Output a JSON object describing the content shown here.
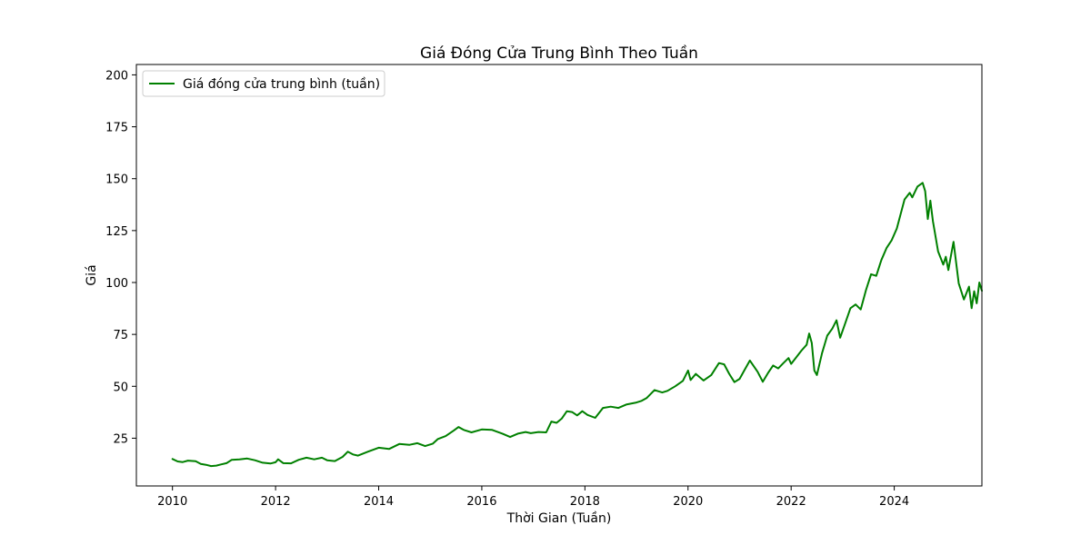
{
  "chart_data": {
    "type": "line",
    "title": "Giá Đóng Cửa Trung Bình Theo Tuần",
    "xlabel": "Thời Gian (Tuần)",
    "ylabel": "Giá",
    "xlim": [
      2009.3,
      2025.7
    ],
    "ylim": [
      2,
      205
    ],
    "xticks": [
      2010,
      2012,
      2014,
      2016,
      2018,
      2020,
      2022,
      2024
    ],
    "yticks": [
      25,
      50,
      75,
      100,
      125,
      150,
      175,
      200
    ],
    "grid": false,
    "legend": "top-left",
    "color": "#008000",
    "series": [
      {
        "name": "Giá đóng cửa trung bình (tuần)",
        "points": [
          [
            2010.0,
            15.0
          ],
          [
            2010.1,
            13.8
          ],
          [
            2010.2,
            13.5
          ],
          [
            2010.3,
            14.2
          ],
          [
            2010.45,
            13.9
          ],
          [
            2010.55,
            12.6
          ],
          [
            2010.65,
            12.2
          ],
          [
            2010.75,
            11.6
          ],
          [
            2010.85,
            11.8
          ],
          [
            2010.95,
            12.4
          ],
          [
            2011.05,
            13.0
          ],
          [
            2011.15,
            14.6
          ],
          [
            2011.3,
            14.8
          ],
          [
            2011.45,
            15.2
          ],
          [
            2011.6,
            14.4
          ],
          [
            2011.75,
            13.2
          ],
          [
            2011.9,
            12.8
          ],
          [
            2012.0,
            13.4
          ],
          [
            2012.05,
            14.8
          ],
          [
            2012.15,
            13.0
          ],
          [
            2012.3,
            12.9
          ],
          [
            2012.45,
            14.6
          ],
          [
            2012.6,
            15.6
          ],
          [
            2012.75,
            14.8
          ],
          [
            2012.9,
            15.6
          ],
          [
            2013.0,
            14.4
          ],
          [
            2013.15,
            14.0
          ],
          [
            2013.3,
            16.0
          ],
          [
            2013.4,
            18.5
          ],
          [
            2013.5,
            17.2
          ],
          [
            2013.6,
            16.6
          ],
          [
            2013.8,
            18.6
          ],
          [
            2014.0,
            20.4
          ],
          [
            2014.2,
            19.8
          ],
          [
            2014.4,
            22.2
          ],
          [
            2014.6,
            21.8
          ],
          [
            2014.75,
            22.6
          ],
          [
            2014.9,
            21.2
          ],
          [
            2015.05,
            22.4
          ],
          [
            2015.15,
            24.6
          ],
          [
            2015.3,
            26.0
          ],
          [
            2015.45,
            28.6
          ],
          [
            2015.55,
            30.4
          ],
          [
            2015.65,
            29.0
          ],
          [
            2015.8,
            27.8
          ],
          [
            2016.0,
            29.2
          ],
          [
            2016.2,
            29.0
          ],
          [
            2016.4,
            27.2
          ],
          [
            2016.55,
            25.6
          ],
          [
            2016.7,
            27.2
          ],
          [
            2016.85,
            28.0
          ],
          [
            2016.95,
            27.4
          ],
          [
            2017.1,
            28.0
          ],
          [
            2017.25,
            27.8
          ],
          [
            2017.35,
            33.0
          ],
          [
            2017.45,
            32.4
          ],
          [
            2017.55,
            34.4
          ],
          [
            2017.65,
            38.0
          ],
          [
            2017.75,
            37.6
          ],
          [
            2017.85,
            36.0
          ],
          [
            2017.95,
            38.0
          ],
          [
            2018.05,
            36.2
          ],
          [
            2018.2,
            34.8
          ],
          [
            2018.35,
            39.6
          ],
          [
            2018.5,
            40.2
          ],
          [
            2018.65,
            39.6
          ],
          [
            2018.8,
            41.2
          ],
          [
            2019.0,
            42.2
          ],
          [
            2019.1,
            43.0
          ],
          [
            2019.2,
            44.4
          ],
          [
            2019.35,
            48.2
          ],
          [
            2019.5,
            47.0
          ],
          [
            2019.6,
            47.8
          ],
          [
            2019.75,
            50.0
          ],
          [
            2019.9,
            52.6
          ],
          [
            2020.0,
            57.6
          ],
          [
            2020.05,
            53.0
          ],
          [
            2020.15,
            56.0
          ],
          [
            2020.3,
            52.8
          ],
          [
            2020.45,
            55.4
          ],
          [
            2020.6,
            61.2
          ],
          [
            2020.7,
            60.6
          ],
          [
            2020.8,
            56.0
          ],
          [
            2020.9,
            52.0
          ],
          [
            2021.0,
            53.6
          ],
          [
            2021.1,
            58.0
          ],
          [
            2021.2,
            62.4
          ],
          [
            2021.35,
            57.0
          ],
          [
            2021.45,
            52.2
          ],
          [
            2021.55,
            56.4
          ],
          [
            2021.65,
            60.0
          ],
          [
            2021.75,
            58.6
          ],
          [
            2021.85,
            61.2
          ],
          [
            2021.95,
            63.6
          ],
          [
            2022.0,
            60.8
          ],
          [
            2022.1,
            64.0
          ],
          [
            2022.2,
            67.2
          ],
          [
            2022.3,
            70.0
          ],
          [
            2022.35,
            75.4
          ],
          [
            2022.4,
            70.8
          ],
          [
            2022.45,
            57.6
          ],
          [
            2022.5,
            55.4
          ],
          [
            2022.6,
            66.0
          ],
          [
            2022.7,
            74.4
          ],
          [
            2022.8,
            77.8
          ],
          [
            2022.88,
            81.8
          ],
          [
            2022.95,
            73.4
          ],
          [
            2023.05,
            80.4
          ],
          [
            2023.15,
            87.6
          ],
          [
            2023.25,
            89.4
          ],
          [
            2023.35,
            87.0
          ],
          [
            2023.45,
            96.2
          ],
          [
            2023.55,
            104.0
          ],
          [
            2023.65,
            103.2
          ],
          [
            2023.75,
            110.8
          ],
          [
            2023.85,
            116.6
          ],
          [
            2023.95,
            120.4
          ],
          [
            2024.05,
            126.0
          ],
          [
            2024.15,
            135.4
          ],
          [
            2024.2,
            140.0
          ],
          [
            2024.3,
            143.2
          ],
          [
            2024.35,
            141.0
          ],
          [
            2024.45,
            146.2
          ],
          [
            2024.55,
            148.0
          ],
          [
            2024.6,
            144.0
          ],
          [
            2024.65,
            130.6
          ],
          [
            2024.7,
            139.4
          ],
          [
            2024.75,
            129.6
          ],
          [
            2024.85,
            115.0
          ],
          [
            2024.95,
            108.6
          ],
          [
            2025.0,
            112.4
          ],
          [
            2025.05,
            106.0
          ],
          [
            2025.1,
            113.0
          ],
          [
            2025.15,
            119.6
          ],
          [
            2025.25,
            99.6
          ],
          [
            2025.35,
            91.8
          ],
          [
            2025.45,
            98.0
          ],
          [
            2025.5,
            87.6
          ],
          [
            2025.55,
            95.8
          ],
          [
            2025.6,
            90.0
          ],
          [
            2025.65,
            100.0
          ],
          [
            2025.7,
            96.0
          ]
        ]
      }
    ]
  }
}
